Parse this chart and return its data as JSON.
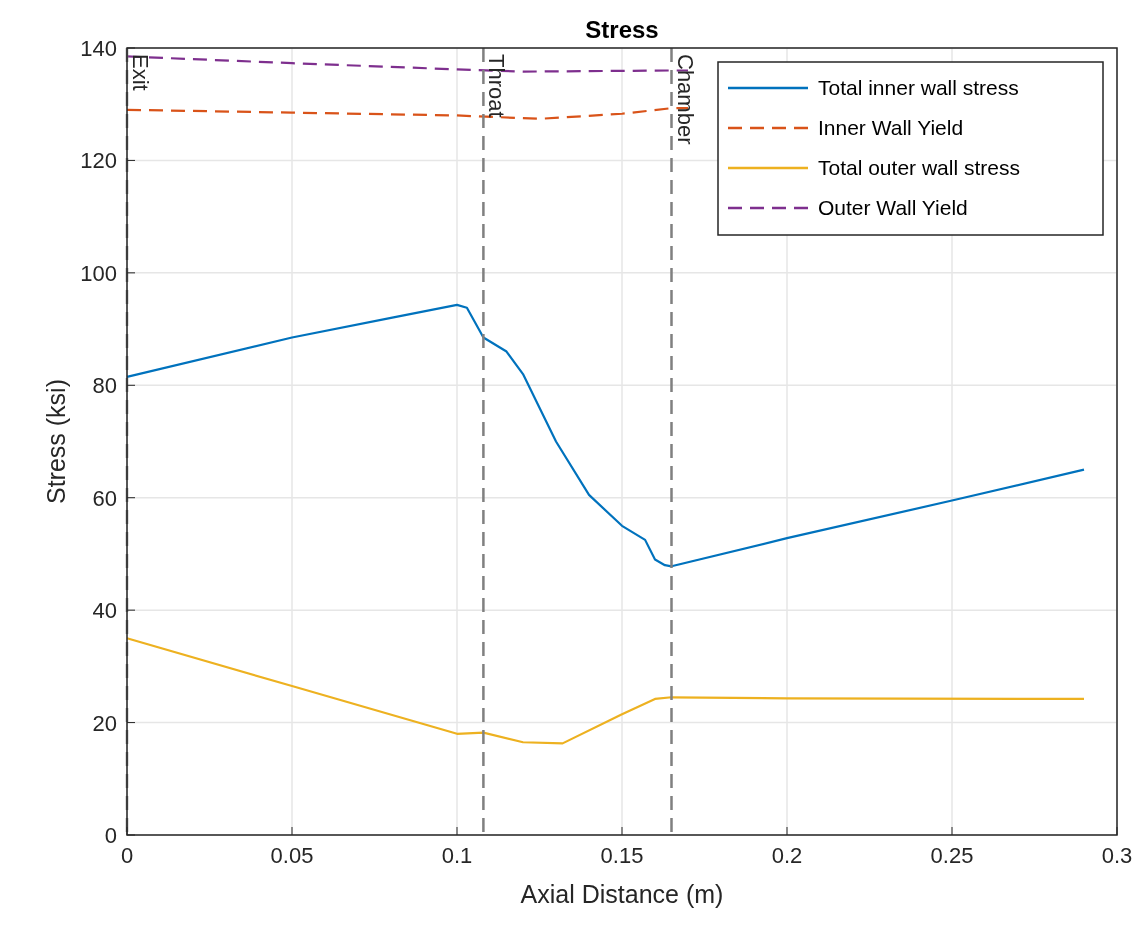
{
  "chart_data": {
    "type": "line",
    "title": "Stress",
    "xlabel": "Axial Distance (m)",
    "ylabel": "Stress (ksi)",
    "xlim": [
      0,
      0.3
    ],
    "xticks": [
      0,
      0.05,
      0.1,
      0.15,
      0.2,
      0.25,
      0.3
    ],
    "ylim": [
      0,
      140
    ],
    "yticks": [
      0,
      20,
      40,
      60,
      80,
      100,
      120,
      140
    ],
    "grid": true,
    "legend": "top right",
    "series": [
      {
        "name": "Total inner wall stress",
        "color": "#0072bd",
        "line_style": "solid",
        "x": [
          0,
          0.05,
          0.08,
          0.1,
          0.103,
          0.108,
          0.115,
          0.12,
          0.13,
          0.14,
          0.15,
          0.157,
          0.16,
          0.163,
          0.165,
          0.2,
          0.25,
          0.29
        ],
        "values": [
          81.5,
          88.5,
          92,
          94.3,
          93.8,
          88.5,
          86,
          82,
          70,
          60.5,
          55,
          52.5,
          49,
          48,
          47.8,
          52.8,
          59.5,
          65
        ]
      },
      {
        "name": "Inner Wall Yield",
        "color": "#d95319",
        "line_style": "dashed",
        "x": [
          0,
          0.05,
          0.1,
          0.125,
          0.15,
          0.165,
          0.17
        ],
        "values": [
          129,
          128.5,
          128,
          127.4,
          128.3,
          129.3,
          129.3
        ]
      },
      {
        "name": "Total outer wall stress",
        "color": "#edb120",
        "line_style": "solid",
        "x": [
          0,
          0.05,
          0.1,
          0.108,
          0.12,
          0.132,
          0.15,
          0.16,
          0.165,
          0.2,
          0.29
        ],
        "values": [
          35,
          26.5,
          18,
          18.2,
          16.5,
          16.3,
          21.5,
          24.2,
          24.5,
          24.3,
          24.2
        ]
      },
      {
        "name": "Outer Wall Yield",
        "color": "#7e2f8e",
        "line_style": "dashed",
        "x": [
          0,
          0.05,
          0.1,
          0.12,
          0.165,
          0.17
        ],
        "values": [
          138.5,
          137.3,
          136.2,
          135.8,
          136,
          136
        ]
      }
    ],
    "ref_lines": [
      {
        "axis": "x",
        "value": 0,
        "label": "Exit",
        "color": "#808080",
        "line_style": "dashed"
      },
      {
        "axis": "x",
        "value": 0.108,
        "label": "Throat",
        "color": "#808080",
        "line_style": "dashed"
      },
      {
        "axis": "x",
        "value": 0.165,
        "label": "Chamber",
        "color": "#808080",
        "line_style": "dashed"
      }
    ]
  }
}
